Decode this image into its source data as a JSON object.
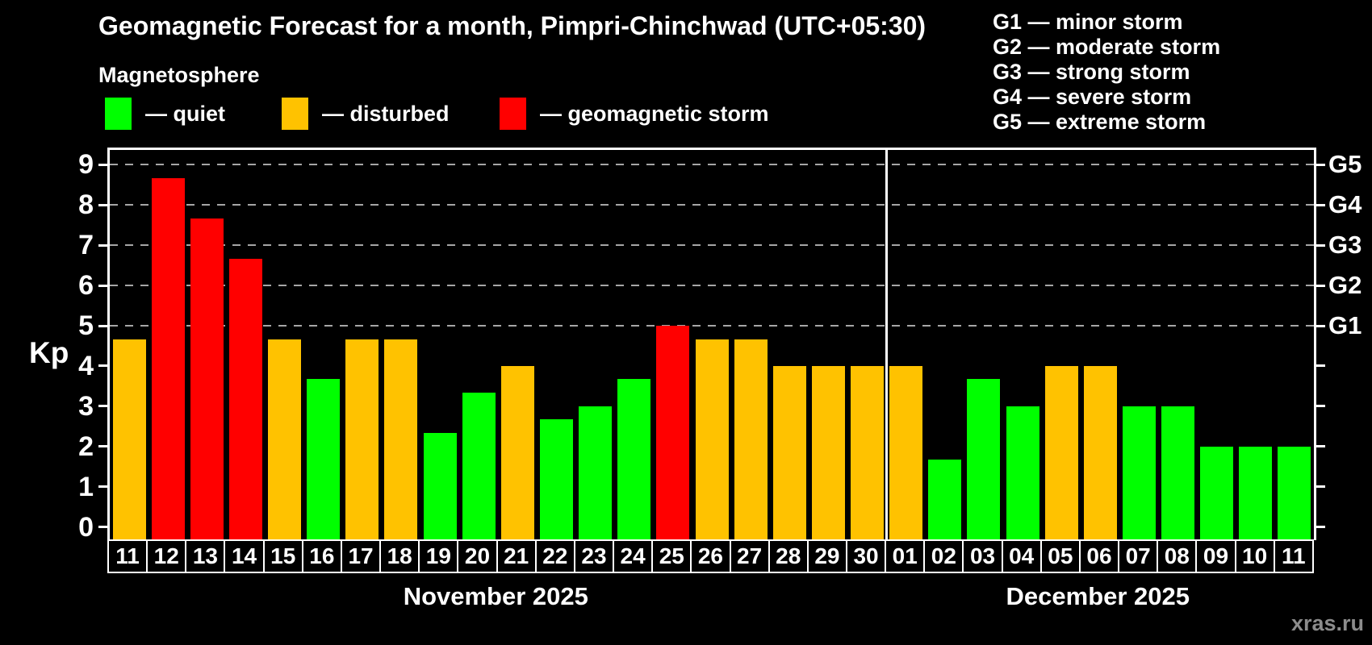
{
  "header": {
    "title": "Geomagnetic Forecast for a month, Pimpri-Chinchwad (UTC+05:30)",
    "subtitle": "Magnetosphere",
    "watermark": "xras.ru"
  },
  "legend": {
    "items": [
      {
        "key": "quiet",
        "label": "— quiet",
        "color": "#00ff00"
      },
      {
        "key": "disturbed",
        "label": "— disturbed",
        "color": "#ffc200"
      },
      {
        "key": "storm",
        "label": "— geomagnetic storm",
        "color": "#ff0000"
      }
    ]
  },
  "g_legend": {
    "lines": [
      "G1 — minor storm",
      "G2 — moderate storm",
      "G3 — strong storm",
      "G4 — severe storm",
      "G5 — extreme storm"
    ]
  },
  "chart_data": {
    "type": "bar",
    "title": "Geomagnetic Forecast for a month, Pimpri-Chinchwad (UTC+05:30)",
    "ylabel": "Kp",
    "ylim": [
      -0.33,
      9.37
    ],
    "left_ticks": [
      0,
      1,
      2,
      3,
      4,
      5,
      6,
      7,
      8,
      9
    ],
    "grid_style": "dashed",
    "gridlines": [
      {
        "value": 5,
        "label": "G1"
      },
      {
        "value": 6,
        "label": "G2"
      },
      {
        "value": 7,
        "label": "G3"
      },
      {
        "value": 8,
        "label": "G4"
      },
      {
        "value": 9,
        "label": "G5"
      }
    ],
    "colors": {
      "quiet": "#00ff00",
      "disturbed": "#ffc200",
      "storm": "#ff0000"
    },
    "months": [
      {
        "label": "November 2025",
        "days": 20
      },
      {
        "label": "December 2025",
        "days": 11
      }
    ],
    "bars": [
      {
        "month": "November",
        "day": "11",
        "value": 4.67,
        "state": "disturbed"
      },
      {
        "month": "November",
        "day": "12",
        "value": 8.67,
        "state": "storm"
      },
      {
        "month": "November",
        "day": "13",
        "value": 7.67,
        "state": "storm"
      },
      {
        "month": "November",
        "day": "14",
        "value": 6.67,
        "state": "storm"
      },
      {
        "month": "November",
        "day": "15",
        "value": 4.67,
        "state": "disturbed"
      },
      {
        "month": "November",
        "day": "16",
        "value": 3.67,
        "state": "quiet"
      },
      {
        "month": "November",
        "day": "17",
        "value": 4.67,
        "state": "disturbed"
      },
      {
        "month": "November",
        "day": "18",
        "value": 4.67,
        "state": "disturbed"
      },
      {
        "month": "November",
        "day": "19",
        "value": 2.33,
        "state": "quiet"
      },
      {
        "month": "November",
        "day": "20",
        "value": 3.33,
        "state": "quiet"
      },
      {
        "month": "November",
        "day": "21",
        "value": 4.0,
        "state": "disturbed"
      },
      {
        "month": "November",
        "day": "22",
        "value": 2.67,
        "state": "quiet"
      },
      {
        "month": "November",
        "day": "23",
        "value": 3.0,
        "state": "quiet"
      },
      {
        "month": "November",
        "day": "24",
        "value": 3.67,
        "state": "quiet"
      },
      {
        "month": "November",
        "day": "25",
        "value": 5.0,
        "state": "storm"
      },
      {
        "month": "November",
        "day": "26",
        "value": 4.67,
        "state": "disturbed"
      },
      {
        "month": "November",
        "day": "27",
        "value": 4.67,
        "state": "disturbed"
      },
      {
        "month": "November",
        "day": "28",
        "value": 4.0,
        "state": "disturbed"
      },
      {
        "month": "November",
        "day": "29",
        "value": 4.0,
        "state": "disturbed"
      },
      {
        "month": "November",
        "day": "30",
        "value": 4.0,
        "state": "disturbed"
      },
      {
        "month": "December",
        "day": "01",
        "value": 4.0,
        "state": "disturbed"
      },
      {
        "month": "December",
        "day": "02",
        "value": 1.67,
        "state": "quiet"
      },
      {
        "month": "December",
        "day": "03",
        "value": 3.67,
        "state": "quiet"
      },
      {
        "month": "December",
        "day": "04",
        "value": 3.0,
        "state": "quiet"
      },
      {
        "month": "December",
        "day": "05",
        "value": 4.0,
        "state": "disturbed"
      },
      {
        "month": "December",
        "day": "06",
        "value": 4.0,
        "state": "disturbed"
      },
      {
        "month": "December",
        "day": "07",
        "value": 3.0,
        "state": "quiet"
      },
      {
        "month": "December",
        "day": "08",
        "value": 3.0,
        "state": "quiet"
      },
      {
        "month": "December",
        "day": "09",
        "value": 2.0,
        "state": "quiet"
      },
      {
        "month": "December",
        "day": "10",
        "value": 2.0,
        "state": "quiet"
      },
      {
        "month": "December",
        "day": "11",
        "value": 2.0,
        "state": "quiet"
      }
    ]
  }
}
